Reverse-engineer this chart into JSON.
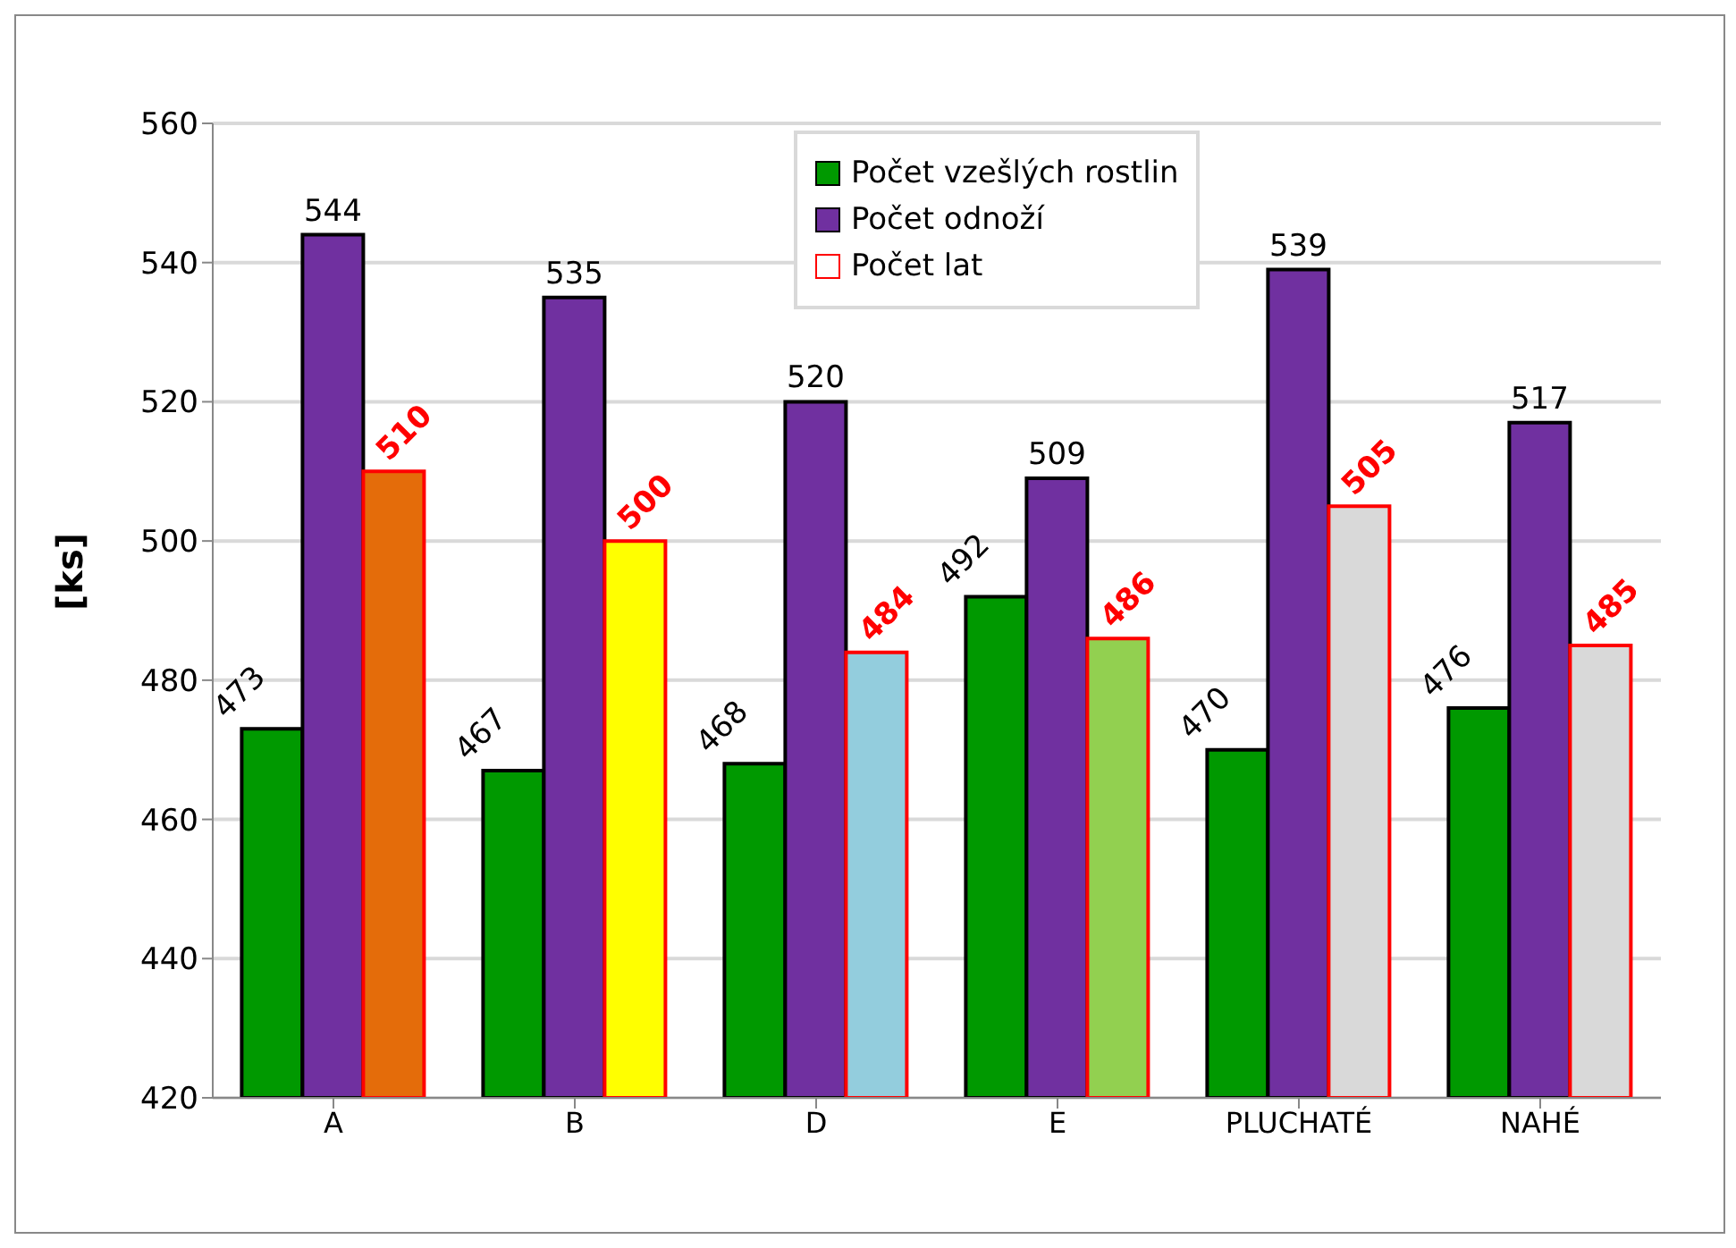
{
  "chart_data": {
    "type": "bar",
    "ylabel": "[ks]",
    "categories": [
      "A",
      "B",
      "D",
      "E",
      "PLUCHATÉ",
      "NAHÉ"
    ],
    "series": [
      {
        "name": "Počet vzešlých rostlin",
        "color": "#009900",
        "values": [
          473,
          467,
          468,
          492,
          470,
          476
        ]
      },
      {
        "name": "Počet odnoží",
        "color": "#7030a0",
        "values": [
          544,
          535,
          520,
          509,
          539,
          517
        ]
      },
      {
        "name": "Počet lat",
        "color": "#ff0000",
        "colors": [
          "#e46c0a",
          "#ffff00",
          "#93cddd",
          "#92d050",
          "#d9d9d9",
          "#d9d9d9"
        ],
        "values": [
          510,
          500,
          484,
          486,
          505,
          485
        ]
      }
    ],
    "ylim": [
      420,
      560
    ],
    "yticks": [
      420,
      440,
      460,
      480,
      500,
      520,
      540,
      560
    ],
    "grid": "y",
    "legend": "top",
    "data_labels": true
  }
}
